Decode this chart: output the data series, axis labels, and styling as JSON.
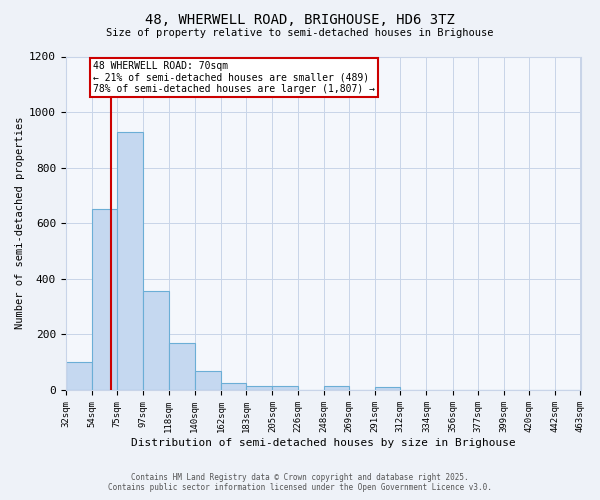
{
  "title": "48, WHERWELL ROAD, BRIGHOUSE, HD6 3TZ",
  "subtitle": "Size of property relative to semi-detached houses in Brighouse",
  "xlabel": "Distribution of semi-detached houses by size in Brighouse",
  "ylabel": "Number of semi-detached properties",
  "bin_edges": [
    32,
    54,
    75,
    97,
    118,
    140,
    162,
    183,
    205,
    226,
    248,
    269,
    291,
    312,
    334,
    356,
    377,
    399,
    420,
    442,
    463
  ],
  "bar_heights": [
    100,
    650,
    930,
    355,
    170,
    70,
    25,
    15,
    15,
    0,
    15,
    0,
    10,
    0,
    0,
    0,
    0,
    0,
    0,
    0
  ],
  "bar_color": "#c5d8f0",
  "bar_edge_color": "#6baed6",
  "property_size": 70,
  "red_line_color": "#cc0000",
  "annotation_title": "48 WHERWELL ROAD: 70sqm",
  "annotation_line1": "← 21% of semi-detached houses are smaller (489)",
  "annotation_line2": "78% of semi-detached houses are larger (1,807) →",
  "ylim": [
    0,
    1200
  ],
  "yticks": [
    0,
    200,
    400,
    600,
    800,
    1000,
    1200
  ],
  "footer_line1": "Contains HM Land Registry data © Crown copyright and database right 2025.",
  "footer_line2": "Contains public sector information licensed under the Open Government Licence v3.0.",
  "bg_color": "#eef2f8",
  "plot_bg_color": "#f4f7fc",
  "grid_color": "#c8d4e8"
}
